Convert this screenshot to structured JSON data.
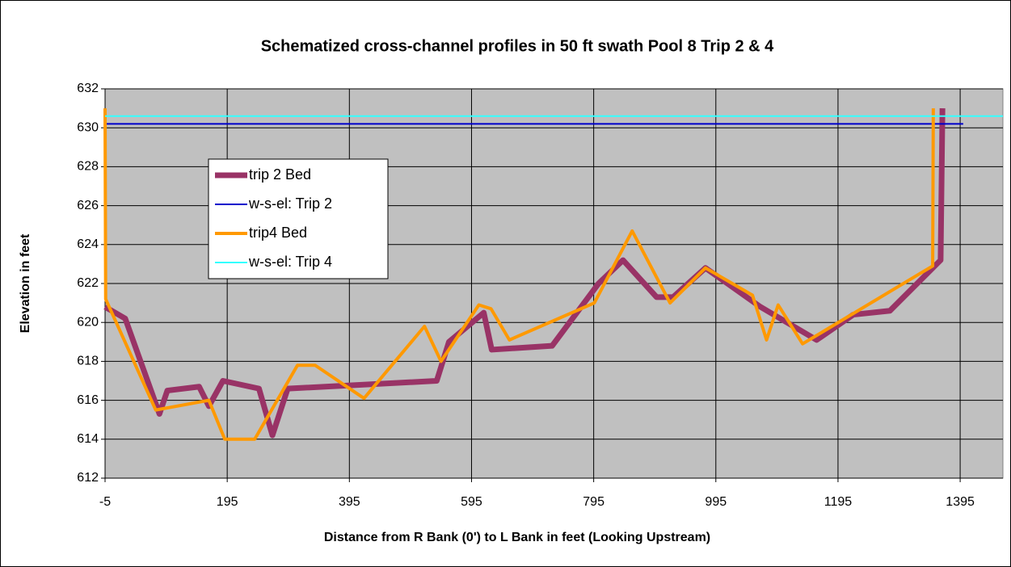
{
  "chart_data": {
    "type": "line",
    "title": "Schematized cross-channel profiles in 50 ft swath Pool 8 Trip 2 & 4",
    "xlabel": "Distance from R Bank (0') to L Bank in feet (Looking Upstream)",
    "ylabel": "Elevation in feet",
    "xlim": [
      -5,
      1465
    ],
    "xticks": [
      -5,
      195,
      395,
      595,
      795,
      995,
      1195,
      1395
    ],
    "ylim": [
      612,
      632
    ],
    "yticks": [
      612,
      614,
      616,
      618,
      620,
      622,
      624,
      626,
      628,
      630,
      632
    ],
    "grid": true,
    "legend": "left",
    "series": [
      {
        "name": "trip 2 Bed",
        "color": "#993366",
        "x": [
          -5,
          28,
          84,
          97,
          149,
          165,
          188,
          247,
          269,
          294,
          538,
          558,
          615,
          628,
          727,
          803,
          843,
          898,
          925,
          978,
          1068,
          1160,
          1220,
          1280,
          1363,
          1366
        ],
        "values": [
          620.8,
          620.2,
          615.3,
          616.5,
          616.7,
          615.7,
          617,
          616.6,
          614.2,
          616.6,
          617,
          619,
          620.5,
          618.6,
          618.8,
          622,
          623.2,
          621.3,
          621.3,
          622.8,
          620.8,
          619.1,
          620.4,
          620.6,
          623.2,
          631
        ]
      },
      {
        "name": "w-s-el: Trip 2",
        "color": "#0000cc",
        "x": [
          -5,
          1400
        ],
        "values": [
          630.2,
          630.2
        ]
      },
      {
        "name": "trip4 Bed",
        "color": "#ff9900",
        "x": [
          -5,
          -4,
          78,
          165,
          191,
          240,
          310,
          339,
          419,
          518,
          545,
          607,
          627,
          657,
          796,
          858,
          920,
          978,
          1055,
          1078,
          1097,
          1137,
          1350,
          1351
        ],
        "values": [
          631,
          621.2,
          615.5,
          616,
          614,
          614,
          617.8,
          617.8,
          616.1,
          619.8,
          618,
          620.9,
          620.7,
          619.1,
          621,
          624.7,
          621,
          622.8,
          621.4,
          619.1,
          620.9,
          618.9,
          622.9,
          631
        ]
      },
      {
        "name": "w-s-el: Trip 4",
        "color": "#33ffff",
        "x": [
          -5,
          1465
        ],
        "values": [
          630.6,
          630.6
        ]
      }
    ]
  }
}
